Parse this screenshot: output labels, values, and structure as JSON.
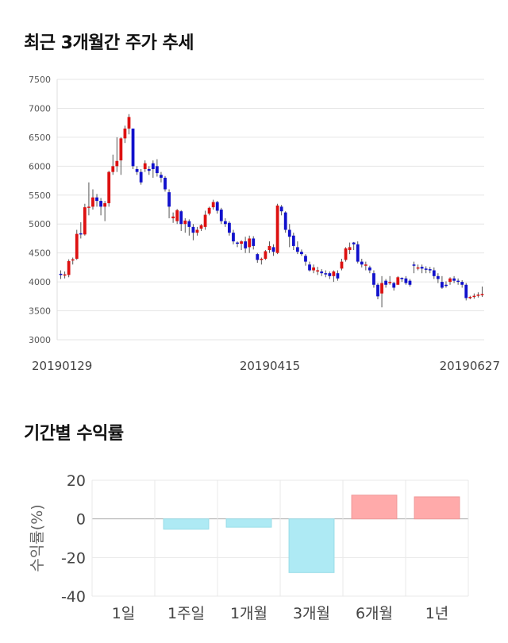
{
  "sections": {
    "price_title": "최근 3개월간 주가 추세",
    "return_title": "기간별 수익률"
  },
  "chart_data": [
    {
      "type": "candlestick",
      "title": "최근 3개월간 주가 추세",
      "ylim": [
        3000,
        7500
      ],
      "y_ticks": [
        3000,
        3500,
        4000,
        4500,
        5000,
        5500,
        6000,
        6500,
        7000,
        7500
      ],
      "x_tick_labels": [
        "20190129",
        "20190415",
        "20190627"
      ],
      "grid": true,
      "colors": {
        "up": "#dd1111",
        "down": "#1111cc",
        "wick": "#555555"
      },
      "candles": [
        [
          4140,
          4120,
          4200,
          4050
        ],
        [
          4110,
          4130,
          4180,
          4060
        ],
        [
          4120,
          4360,
          4390,
          4080
        ],
        [
          4380,
          4390,
          4420,
          4300
        ],
        [
          4400,
          4830,
          4900,
          4380
        ],
        [
          4840,
          4830,
          5030,
          4750
        ],
        [
          4820,
          5290,
          5350,
          4800
        ],
        [
          5300,
          5300,
          5720,
          5150
        ],
        [
          5300,
          5460,
          5600,
          5250
        ],
        [
          5460,
          5400,
          5520,
          5300
        ],
        [
          5400,
          5300,
          5450,
          5150
        ],
        [
          5300,
          5360,
          5400,
          5050
        ],
        [
          5360,
          5900,
          5920,
          5300
        ],
        [
          5900,
          6000,
          6200,
          5850
        ],
        [
          6000,
          6090,
          6500,
          5900
        ],
        [
          6100,
          6480,
          6500,
          5850
        ],
        [
          6480,
          6650,
          6700,
          6400
        ],
        [
          6650,
          6850,
          6900,
          6550
        ],
        [
          6650,
          6000,
          6650,
          5950
        ],
        [
          5950,
          5900,
          6000,
          5850
        ],
        [
          5900,
          5720,
          5950,
          5680
        ],
        [
          5950,
          6050,
          6100,
          5900
        ],
        [
          5950,
          5920,
          6000,
          5850
        ],
        [
          6050,
          5950,
          6100,
          5800
        ],
        [
          6000,
          5880,
          6120,
          5820
        ],
        [
          5850,
          5800,
          5900,
          5720
        ],
        [
          5800,
          5600,
          5830,
          5560
        ],
        [
          5550,
          5300,
          5600,
          5100
        ],
        [
          5100,
          5130,
          5200,
          5020
        ],
        [
          5050,
          5240,
          5260,
          5000
        ],
        [
          5220,
          5000,
          5240,
          4880
        ],
        [
          5000,
          5060,
          5100,
          4850
        ],
        [
          5050,
          4950,
          5080,
          4800
        ],
        [
          4950,
          4850,
          5000,
          4720
        ],
        [
          4850,
          4900,
          4950,
          4800
        ],
        [
          4920,
          4980,
          5000,
          4880
        ],
        [
          4950,
          5160,
          5230,
          4900
        ],
        [
          5180,
          5280,
          5300,
          5150
        ],
        [
          5290,
          5380,
          5420,
          5250
        ],
        [
          5380,
          5230,
          5400,
          5180
        ],
        [
          5250,
          5050,
          5280,
          5000
        ],
        [
          5050,
          5000,
          5100,
          4950
        ],
        [
          5020,
          4850,
          5050,
          4800
        ],
        [
          4850,
          4700,
          4900,
          4650
        ],
        [
          4680,
          4660,
          4700,
          4600
        ],
        [
          4660,
          4700,
          4720,
          4550
        ],
        [
          4700,
          4580,
          4780,
          4500
        ],
        [
          4600,
          4750,
          4800,
          4500
        ],
        [
          4750,
          4620,
          4790,
          4560
        ],
        [
          4480,
          4380,
          4500,
          4330
        ],
        [
          4390,
          4400,
          4420,
          4300
        ],
        [
          4400,
          4530,
          4550,
          4380
        ],
        [
          4550,
          4620,
          4700,
          4500
        ],
        [
          4600,
          4520,
          4650,
          4450
        ],
        [
          4500,
          5320,
          5350,
          4480
        ],
        [
          5300,
          5220,
          5330,
          5150
        ],
        [
          5200,
          4900,
          5220,
          4850
        ],
        [
          4900,
          4780,
          5000,
          4600
        ],
        [
          4800,
          4620,
          4850,
          4550
        ],
        [
          4600,
          4520,
          4700,
          4480
        ],
        [
          4520,
          4480,
          4560,
          4450
        ],
        [
          4450,
          4350,
          4480,
          4280
        ],
        [
          4300,
          4200,
          4350,
          4180
        ],
        [
          4200,
          4250,
          4300,
          4150
        ],
        [
          4180,
          4200,
          4260,
          4120
        ],
        [
          4180,
          4150,
          4220,
          4100
        ],
        [
          4150,
          4140,
          4200,
          4080
        ],
        [
          4150,
          4100,
          4180,
          4050
        ],
        [
          4100,
          4180,
          4200,
          4000
        ],
        [
          4150,
          4060,
          4200,
          4020
        ],
        [
          4230,
          4350,
          4400,
          4200
        ],
        [
          4380,
          4580,
          4600,
          4350
        ],
        [
          4550,
          4600,
          4680,
          4480
        ],
        [
          4680,
          4650,
          4690,
          4550
        ],
        [
          4650,
          4350,
          4700,
          4320
        ],
        [
          4350,
          4300,
          4400,
          4250
        ],
        [
          4300,
          4300,
          4350,
          4200
        ],
        [
          4250,
          4200,
          4280,
          4150
        ],
        [
          4150,
          3950,
          4200,
          3900
        ],
        [
          3950,
          3750,
          3980,
          3700
        ],
        [
          3800,
          3980,
          4100,
          3560
        ],
        [
          4020,
          3950,
          4050,
          3900
        ],
        [
          3980,
          4000,
          4100,
          3950
        ],
        [
          3980,
          3900,
          4000,
          3850
        ],
        [
          3950,
          4080,
          4100,
          3950
        ],
        [
          4070,
          4050,
          4080,
          4000
        ],
        [
          4060,
          3980,
          4100,
          3950
        ],
        [
          4020,
          3950,
          4050,
          3920
        ],
        [
          4300,
          4280,
          4350,
          4150
        ],
        [
          4250,
          4250,
          4300,
          4200
        ],
        [
          4260,
          4230,
          4300,
          4150
        ],
        [
          4230,
          4220,
          4270,
          4150
        ],
        [
          4220,
          4200,
          4260,
          4150
        ],
        [
          4200,
          4100,
          4250,
          4050
        ],
        [
          4100,
          4050,
          4150,
          3980
        ],
        [
          4000,
          3900,
          4100,
          3880
        ],
        [
          3950,
          3940,
          4010,
          3900
        ],
        [
          4000,
          4060,
          4080,
          3950
        ],
        [
          4060,
          4020,
          4100,
          3980
        ],
        [
          4020,
          4000,
          4060,
          3950
        ],
        [
          4000,
          3950,
          4030,
          3900
        ],
        [
          3950,
          3720,
          3980,
          3680
        ],
        [
          3730,
          3740,
          3760,
          3700
        ],
        [
          3750,
          3760,
          3800,
          3710
        ],
        [
          3780,
          3780,
          3820,
          3730
        ],
        [
          3780,
          3790,
          3920,
          3740
        ]
      ]
    },
    {
      "type": "bar",
      "ylabel": "수익률(%)",
      "ylim": [
        -40,
        20
      ],
      "y_ticks": [
        20,
        0,
        -20,
        -40
      ],
      "grid": true,
      "categories": [
        "1일",
        "1주일",
        "1개월",
        "3개월",
        "6개월",
        "1년"
      ],
      "values": [
        0,
        -5.3,
        -4.3,
        -27.8,
        12.3,
        11.4
      ],
      "colors": {
        "positive": "#ffaaaa",
        "negative": "#aeeaf4"
      }
    }
  ]
}
